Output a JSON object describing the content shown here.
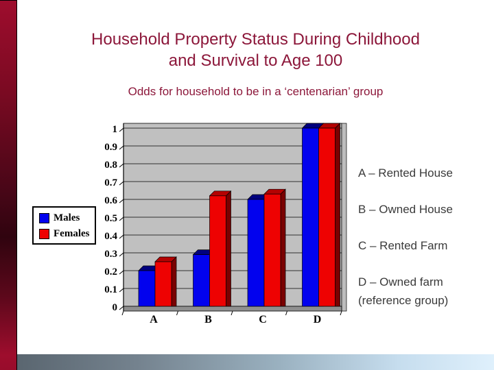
{
  "slide": {
    "title": "Household Property Status During Childhood and Survival to Age 100",
    "subtitle": "Odds for household to be in a ‘centenarian’ group"
  },
  "legend": {
    "items": [
      {
        "label": "Males"
      },
      {
        "label": "Females"
      }
    ]
  },
  "annotations": {
    "items": [
      "A – Rented House",
      "B – Owned House",
      "C – Rented Farm",
      "D – Owned farm (reference group)"
    ]
  },
  "chart_data": {
    "type": "bar",
    "style": "3d-column",
    "categories": [
      "A",
      "B",
      "C",
      "D"
    ],
    "series": [
      {
        "name": "Males",
        "color": "#0202EE",
        "color_top": "#00007E",
        "color_side": "#000052",
        "values": [
          0.2,
          0.29,
          0.6,
          1.0
        ]
      },
      {
        "name": "Females",
        "color": "#EE0202",
        "color_top": "#B40202",
        "color_side": "#7A0101",
        "values": [
          0.25,
          0.62,
          0.63,
          1.0
        ]
      }
    ],
    "ylim": [
      0,
      1
    ],
    "ytick_step": 0.1,
    "yticklabels": [
      "0",
      "0.1",
      "0.2",
      "0.3",
      "0.4",
      "0.5",
      "0.6",
      "0.7",
      "0.8",
      "0.9",
      "1"
    ],
    "plot_bg": "#C0C0C0",
    "floor_color": "#8F8F8F",
    "wall_color": "#BDBDBD",
    "grid": true,
    "legend_position": "left"
  },
  "colors": {
    "title": "#8C173A",
    "subtitle": "#8C173A",
    "annotation_text": "#3A3A3A",
    "accent_bar": "#9E0D2D",
    "footer_left": "#5A6670",
    "footer_right": "#DFF0FC"
  }
}
